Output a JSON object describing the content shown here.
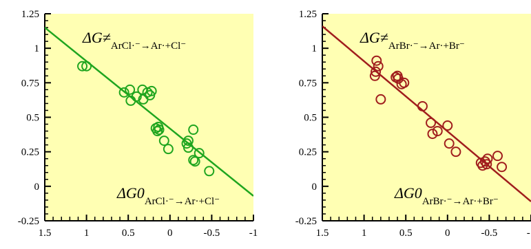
{
  "chart_data": [
    {
      "type": "scatter",
      "x_reversed": true,
      "xlim": [
        1.5,
        -1
      ],
      "ylim": [
        -0.25,
        1.25
      ],
      "xticks": [
        "1.5",
        "1",
        "0.5",
        "0",
        "-0.5",
        "-1"
      ],
      "yticks": [
        "-0.25",
        "0",
        "0.25",
        "0.5",
        "0.75",
        "1",
        "1.25"
      ],
      "colors": {
        "series": "#1fa51f",
        "background": "#ffffb3"
      },
      "annotations": {
        "top": {
          "main": "ΔG≠",
          "sub": "ArCl·⁻→Ar·+Cl⁻"
        },
        "bottom": {
          "main": "ΔG0",
          "sub": "ArCl·⁻→Ar·+Cl⁻"
        }
      },
      "fit_line": {
        "x": [
          1.5,
          -1
        ],
        "y": [
          1.15,
          -0.07
        ]
      },
      "points": [
        {
          "x": 1.05,
          "y": 0.87
        },
        {
          "x": 1.0,
          "y": 0.87
        },
        {
          "x": 0.55,
          "y": 0.68
        },
        {
          "x": 0.48,
          "y": 0.7
        },
        {
          "x": 0.47,
          "y": 0.62
        },
        {
          "x": 0.4,
          "y": 0.65
        },
        {
          "x": 0.33,
          "y": 0.7
        },
        {
          "x": 0.32,
          "y": 0.63
        },
        {
          "x": 0.27,
          "y": 0.68
        },
        {
          "x": 0.24,
          "y": 0.66
        },
        {
          "x": 0.22,
          "y": 0.69
        },
        {
          "x": 0.17,
          "y": 0.42
        },
        {
          "x": 0.15,
          "y": 0.4
        },
        {
          "x": 0.14,
          "y": 0.43
        },
        {
          "x": 0.13,
          "y": 0.41
        },
        {
          "x": 0.07,
          "y": 0.33
        },
        {
          "x": 0.02,
          "y": 0.27
        },
        {
          "x": -0.2,
          "y": 0.31
        },
        {
          "x": -0.22,
          "y": 0.28
        },
        {
          "x": -0.22,
          "y": 0.33
        },
        {
          "x": -0.28,
          "y": 0.41
        },
        {
          "x": -0.28,
          "y": 0.19
        },
        {
          "x": -0.3,
          "y": 0.18
        },
        {
          "x": -0.35,
          "y": 0.24
        },
        {
          "x": -0.47,
          "y": 0.11
        }
      ]
    },
    {
      "type": "scatter",
      "x_reversed": true,
      "xlim": [
        1.5,
        -1
      ],
      "ylim": [
        -0.25,
        1.25
      ],
      "xticks": [
        "1.5",
        "1",
        "0.5",
        "0",
        "-0.5",
        "-1"
      ],
      "yticks": [
        "-0.25",
        "0",
        "0.25",
        "0.5",
        "0.75",
        "1",
        "1.25"
      ],
      "colors": {
        "series": "#a01d1d",
        "background": "#ffffb3"
      },
      "annotations": {
        "top": {
          "main": "ΔG≠",
          "sub": "ArBr·⁻→Ar·+Br⁻"
        },
        "bottom": {
          "main": "ΔG0",
          "sub": "ArBr·⁻→Ar·+Br⁻"
        }
      },
      "fit_line": {
        "x": [
          1.5,
          -1
        ],
        "y": [
          1.16,
          -0.11
        ]
      },
      "points": [
        {
          "x": 0.85,
          "y": 0.91
        },
        {
          "x": 0.83,
          "y": 0.87
        },
        {
          "x": 0.86,
          "y": 0.83
        },
        {
          "x": 0.87,
          "y": 0.8
        },
        {
          "x": 0.8,
          "y": 0.63
        },
        {
          "x": 0.62,
          "y": 0.79
        },
        {
          "x": 0.6,
          "y": 0.8
        },
        {
          "x": 0.59,
          "y": 0.78
        },
        {
          "x": 0.55,
          "y": 0.74
        },
        {
          "x": 0.52,
          "y": 0.75
        },
        {
          "x": 0.3,
          "y": 0.58
        },
        {
          "x": 0.2,
          "y": 0.46
        },
        {
          "x": 0.18,
          "y": 0.38
        },
        {
          "x": 0.12,
          "y": 0.4
        },
        {
          "x": 0.0,
          "y": 0.44
        },
        {
          "x": -0.02,
          "y": 0.31
        },
        {
          "x": -0.1,
          "y": 0.25
        },
        {
          "x": -0.4,
          "y": 0.17
        },
        {
          "x": -0.42,
          "y": 0.15
        },
        {
          "x": -0.45,
          "y": 0.18
        },
        {
          "x": -0.47,
          "y": 0.16
        },
        {
          "x": -0.48,
          "y": 0.2
        },
        {
          "x": -0.6,
          "y": 0.22
        },
        {
          "x": -0.65,
          "y": 0.14
        }
      ]
    }
  ]
}
